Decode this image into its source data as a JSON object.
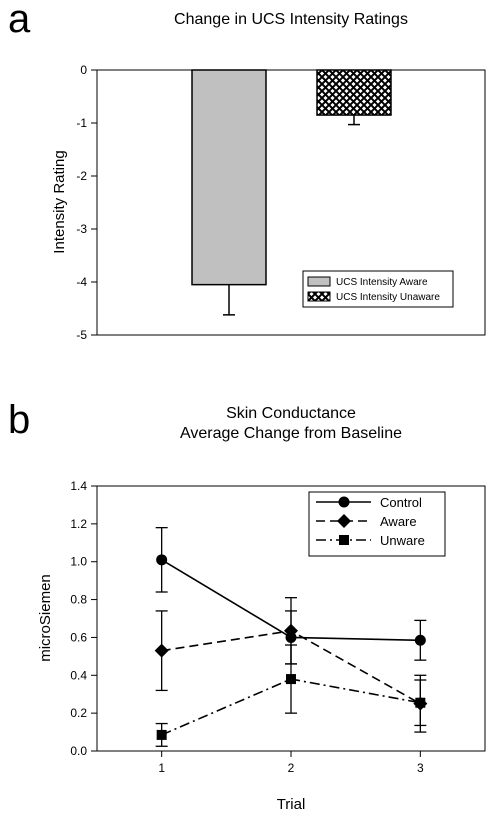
{
  "chart_data": [
    {
      "type": "bar",
      "panel_label": "a",
      "title": "Change in UCS Intensity Ratings",
      "xlabel": "",
      "ylabel": "Intensity Rating",
      "ylim": [
        -5,
        0
      ],
      "yticks": [
        "0",
        "-1",
        "-2",
        "-3",
        "-4",
        "-5"
      ],
      "grid": false,
      "legend_position": "bottom-right",
      "series": [
        {
          "name": "UCS Intensity Aware",
          "value": -4.05,
          "error": 0.57,
          "fill": "#c0c0c0",
          "pattern": "solid"
        },
        {
          "name": "UCS Intensity Unaware",
          "value": -0.85,
          "error": 0.18,
          "fill": "#000000",
          "pattern": "crosshatch"
        }
      ]
    },
    {
      "type": "line",
      "panel_label": "b",
      "title": [
        "Skin Conductance",
        "Average Change from Baseline"
      ],
      "xlabel": "Trial",
      "ylabel": "microSiemen",
      "x": [
        1,
        2,
        3
      ],
      "xlim": [
        0.5,
        3.5
      ],
      "ylim": [
        0.0,
        1.4
      ],
      "yticks": [
        "0.0",
        "0.2",
        "0.4",
        "0.6",
        "0.8",
        "1.0",
        "1.2",
        "1.4"
      ],
      "xticks": [
        "1",
        "2",
        "3"
      ],
      "grid": false,
      "legend_position": "top-right",
      "series": [
        {
          "name": "Control",
          "values": [
            1.01,
            0.6,
            0.585
          ],
          "errors": [
            0.17,
            0.14,
            0.105
          ],
          "marker": "circle",
          "dash": "solid"
        },
        {
          "name": "Aware",
          "values": [
            0.53,
            0.635,
            0.25
          ],
          "errors": [
            0.21,
            0.175,
            0.15
          ],
          "marker": "diamond",
          "dash": "dashed"
        },
        {
          "name": "Unware",
          "values": [
            0.085,
            0.38,
            0.255
          ],
          "errors": [
            0.06,
            0.18,
            0.12
          ],
          "marker": "square",
          "dash": "dashdot"
        }
      ]
    }
  ]
}
